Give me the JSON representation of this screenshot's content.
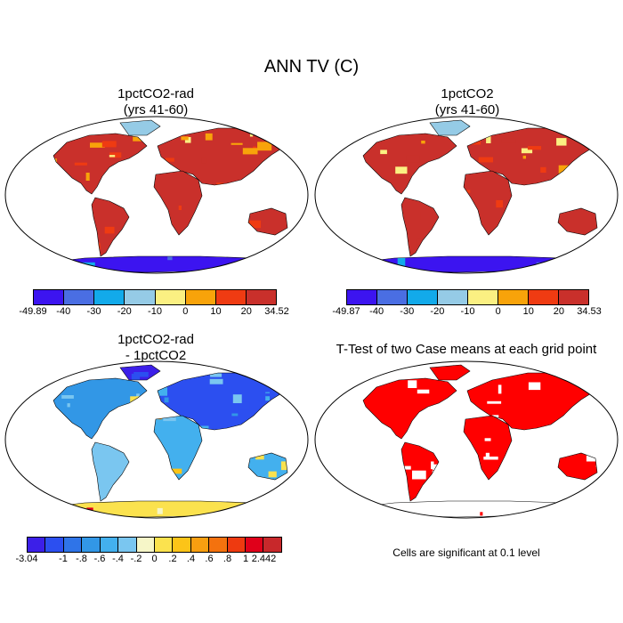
{
  "title": "ANN TV (C)",
  "panels": [
    {
      "title_line1": "1pctCO2-rad",
      "title_line2": "(yrs 41-60)"
    },
    {
      "title_line1": "1pctCO2",
      "title_line2": "(yrs 41-60)"
    },
    {
      "title_line1": "1pctCO2-rad",
      "title_line2": "- 1pctCO2"
    },
    {
      "title_line1": "T-Test of two Case means at each grid point"
    }
  ],
  "colorbars": {
    "abs": {
      "colors": [
        "#3c14f0",
        "#4a6ee3",
        "#12aaea",
        "#95cbe6",
        "#fbf082",
        "#f8a30a",
        "#ef3b12",
        "#c9302b"
      ],
      "ticks_left": [
        "-49.89",
        "-40",
        "-30",
        "-20",
        "-10",
        "0",
        "10",
        "20",
        "34.52"
      ],
      "ticks_right": [
        "-49.87",
        "-40",
        "-30",
        "-20",
        "-10",
        "0",
        "10",
        "20",
        "34.53"
      ]
    },
    "diff": {
      "colors": [
        "#3c1fe8",
        "#2c4ff0",
        "#2f74e8",
        "#3297e6",
        "#43b0ee",
        "#7ac6f0",
        "#f6f6c8",
        "#fbe24e",
        "#fcc418",
        "#f89f10",
        "#f4720e",
        "#ee3a10",
        "#e0001a",
        "#c8282b"
      ],
      "ticks": [
        "-3.04",
        "-1",
        "-.8",
        "-.6",
        "-.4",
        "-.2",
        "0",
        ".2",
        ".4",
        ".6",
        ".8",
        "1",
        "2.442"
      ]
    }
  },
  "note": "Cells are significant at 0.1 level"
}
